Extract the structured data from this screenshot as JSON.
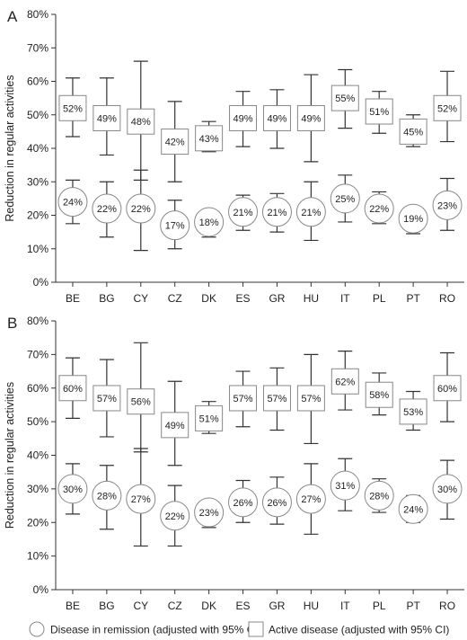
{
  "chart_data": [
    {
      "type": "scatter",
      "panel_label": "A",
      "categories": [
        "BE",
        "BG",
        "CY",
        "CZ",
        "DK",
        "ES",
        "GR",
        "HU",
        "IT",
        "PL",
        "PT",
        "RO"
      ],
      "ylabel": "Reduction in regular activities",
      "ylim": [
        0,
        80
      ],
      "yticks": [
        "0%",
        "10%",
        "20%",
        "30%",
        "40%",
        "50%",
        "60%",
        "70%",
        "80%"
      ],
      "series": [
        {
          "name": "Active disease (adjusted with 95% CI)",
          "marker": "square",
          "values": [
            52,
            49,
            48,
            42,
            43,
            49,
            49,
            49,
            55,
            51,
            45,
            52
          ],
          "labels": [
            "52%",
            "49%",
            "48%",
            "42%",
            "43%",
            "49%",
            "49%",
            "49%",
            "55%",
            "51%",
            "45%",
            "52%"
          ],
          "ci_low": [
            43.5,
            38,
            30.5,
            30,
            39,
            40.5,
            40,
            36,
            46,
            44.5,
            40.5,
            42
          ],
          "ci_high": [
            61,
            61,
            66,
            54,
            48,
            57,
            57.5,
            62,
            63.5,
            57,
            50,
            63
          ]
        },
        {
          "name": "Disease in remission (adjusted with 95% CI)",
          "marker": "circle",
          "values": [
            24,
            22,
            22,
            17,
            18,
            21,
            21,
            21,
            25,
            22,
            19,
            23
          ],
          "labels": [
            "24%",
            "22%",
            "22%",
            "17%",
            "18%",
            "21%",
            "21%",
            "21%",
            "25%",
            "22%",
            "19%",
            "23%"
          ],
          "ci_low": [
            17.5,
            13.5,
            9.5,
            10,
            13.5,
            15.5,
            15,
            12.5,
            18,
            17.5,
            14.5,
            15.5
          ],
          "ci_high": [
            30.5,
            30,
            33.5,
            24.5,
            21.5,
            26,
            26.5,
            30,
            32,
            27,
            22.5,
            31
          ]
        }
      ]
    },
    {
      "type": "scatter",
      "panel_label": "B",
      "categories": [
        "BE",
        "BG",
        "CY",
        "CZ",
        "DK",
        "ES",
        "GR",
        "HU",
        "IT",
        "PL",
        "PT",
        "RO"
      ],
      "ylabel": "Reduction in regular activities",
      "ylim": [
        0,
        80
      ],
      "yticks": [
        "0%",
        "10%",
        "20%",
        "30%",
        "40%",
        "50%",
        "60%",
        "70%",
        "80%"
      ],
      "series": [
        {
          "name": "Active disease (adjusted with 95% CI)",
          "marker": "square",
          "values": [
            60,
            57,
            56,
            49,
            51,
            57,
            57,
            57,
            62,
            58,
            53,
            60
          ],
          "labels": [
            "60%",
            "57%",
            "56%",
            "49%",
            "51%",
            "57%",
            "57%",
            "57%",
            "62%",
            "58%",
            "53%",
            "60%"
          ],
          "ci_low": [
            51,
            45.5,
            41,
            37,
            46.5,
            48.5,
            47.5,
            43.5,
            53.5,
            52,
            47.5,
            50
          ],
          "ci_high": [
            69,
            68.5,
            73.5,
            62,
            56,
            65,
            66,
            70,
            71,
            64.5,
            59,
            70.5
          ]
        },
        {
          "name": "Disease in remission (adjusted with 95% CI)",
          "marker": "circle",
          "values": [
            30,
            28,
            27,
            22,
            23,
            26,
            26,
            27,
            31,
            28,
            24,
            30
          ],
          "labels": [
            "30%",
            "28%",
            "27%",
            "22%",
            "23%",
            "26%",
            "26%",
            "27%",
            "31%",
            "28%",
            "24%",
            "30%"
          ],
          "ci_low": [
            22.5,
            18,
            13,
            13,
            18.5,
            20,
            19.5,
            16.5,
            23.5,
            23,
            20,
            21
          ],
          "ci_high": [
            37.5,
            37,
            42,
            31,
            26.5,
            32.5,
            33.5,
            37.5,
            39,
            33,
            28,
            38.5
          ]
        }
      ]
    }
  ],
  "legend": {
    "remission_label": "Disease in remission (adjusted with 95% CI)",
    "active_label": "Active disease (adjusted with 95% CI)"
  }
}
